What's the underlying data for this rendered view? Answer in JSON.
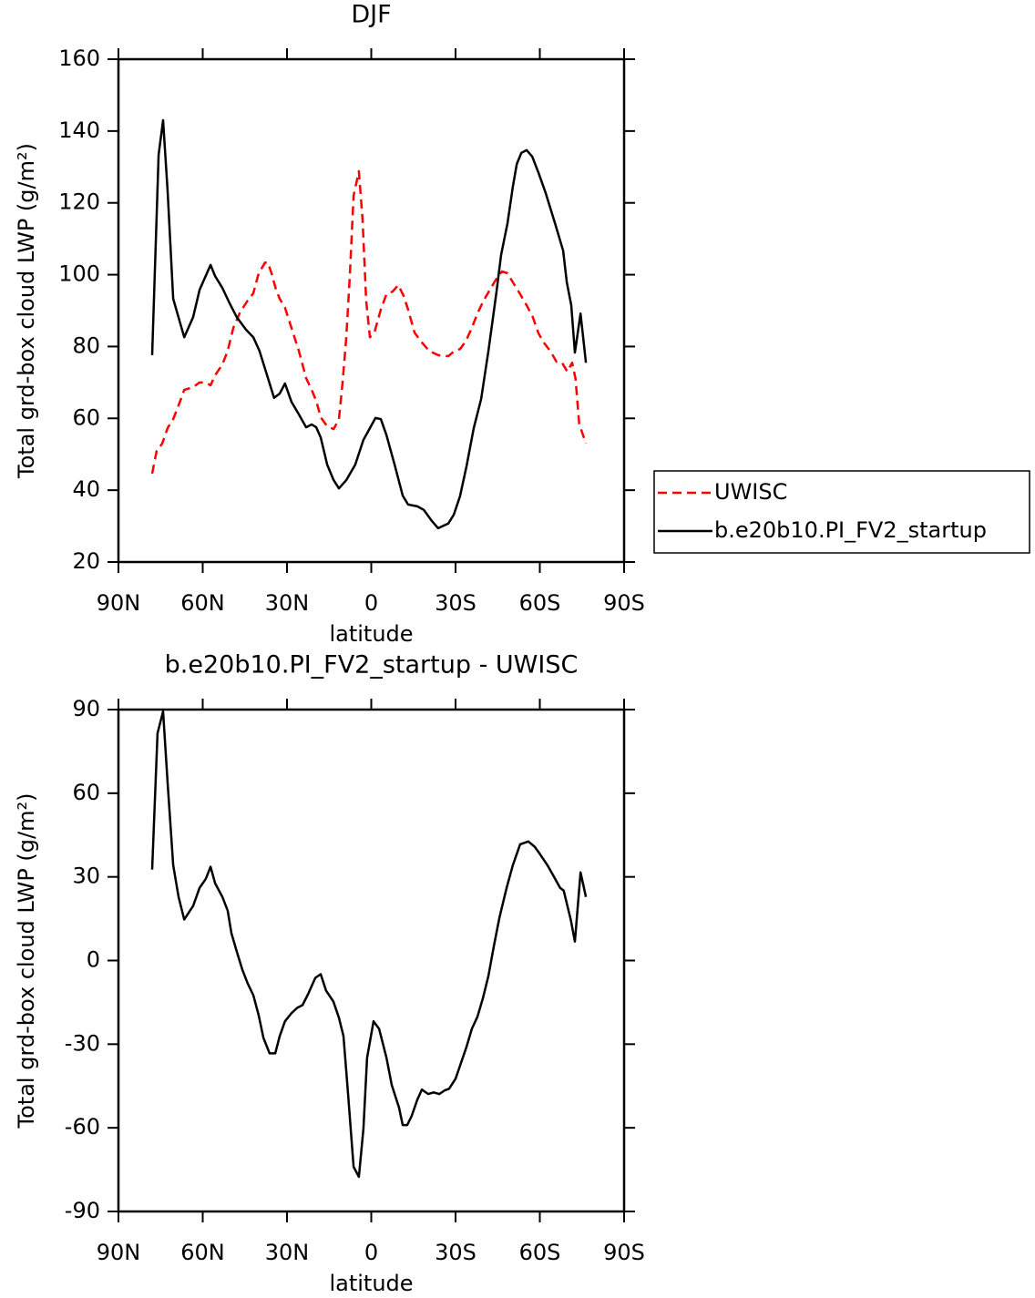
{
  "chart_data": [
    {
      "type": "line",
      "title": "DJF",
      "xlabel": "latitude",
      "ylabel": "Total grd-box cloud LWP (g/m²)",
      "xlim": [
        90,
        -90
      ],
      "xticks": [
        {
          "value": 90,
          "label": "90N"
        },
        {
          "value": 60,
          "label": "60N"
        },
        {
          "value": 30,
          "label": "30N"
        },
        0,
        {
          "value": -30,
          "label": "30S"
        },
        {
          "value": -60,
          "label": "60S"
        },
        {
          "value": -90,
          "label": "90S"
        }
      ],
      "ylim": [
        20,
        160
      ],
      "yticks": [
        20,
        40,
        60,
        80,
        100,
        120,
        140,
        160
      ],
      "grid": false,
      "legend": "right",
      "series": [
        {
          "name": "UWISC",
          "color": "#ff0000",
          "linestyle": "dashed",
          "x": [
            78.0,
            76.4,
            74.4,
            72.5,
            70.5,
            68.6,
            66.6,
            63.4,
            61.1,
            58.9,
            57.2,
            55.6,
            53.0,
            51.1,
            49.1,
            46.6,
            44.0,
            42.0,
            40.1,
            37.8,
            36.8,
            35.5,
            33.9,
            32.6,
            30.7,
            28.4,
            25.8,
            23.2,
            21.2,
            19.6,
            18.0,
            15.7,
            13.4,
            11.5,
            10.2,
            8.9,
            7.6,
            6.3,
            4.4,
            3.1,
            1.8,
            0.5,
            -1.1,
            -3.4,
            -5.4,
            -7.6,
            -9.6,
            -11.5,
            -13.1,
            -15.4,
            -17.7,
            -20.6,
            -23.8,
            -27.4,
            -29.4,
            -31.6,
            -33.6,
            -35.8,
            -37.8,
            -40.0,
            -42.6,
            -44.6,
            -46.5,
            -48.5,
            -50.4,
            -53.0,
            -55.3,
            -57.5,
            -59.5,
            -61.4,
            -63.7,
            -65.9,
            -67.9,
            -69.8,
            -71.5,
            -72.7,
            -74.0,
            -76.4
          ],
          "values": [
            44.6,
            50.9,
            53.0,
            57.3,
            59.8,
            63.6,
            67.9,
            68.7,
            70.0,
            70.0,
            69.2,
            72.0,
            75.0,
            78.8,
            85.2,
            89.7,
            92.8,
            94.8,
            100.4,
            103.4,
            103.4,
            100.4,
            95.8,
            93.3,
            90.8,
            85.2,
            78.8,
            71.2,
            67.9,
            64.9,
            60.3,
            57.8,
            57.0,
            59.8,
            70.0,
            82.6,
            100.4,
            122.0,
            128.8,
            115.6,
            92.8,
            82.6,
            83.9,
            90.3,
            94.6,
            95.3,
            97.1,
            94.1,
            90.3,
            83.9,
            81.4,
            78.8,
            77.6,
            77.3,
            78.6,
            79.3,
            81.4,
            85.2,
            89.2,
            92.8,
            96.3,
            98.9,
            100.9,
            100.4,
            97.9,
            94.6,
            91.5,
            88.2,
            83.7,
            81.1,
            78.8,
            75.8,
            75.5,
            73.0,
            75.5,
            71.0,
            58.5,
            53.0
          ]
        },
        {
          "name": "b.e20b10.PI_FV2_startup",
          "color": "#000000",
          "linestyle": "solid",
          "x": [
            78.0,
            75.7,
            74.1,
            72.5,
            70.5,
            66.6,
            63.4,
            61.1,
            57.2,
            55.6,
            53.0,
            50.4,
            47.9,
            44.6,
            42.0,
            39.8,
            37.5,
            34.6,
            32.6,
            30.7,
            28.4,
            25.8,
            23.2,
            21.2,
            19.6,
            18.0,
            15.7,
            13.4,
            11.5,
            8.9,
            5.7,
            2.8,
            0.8,
            -1.5,
            -3.4,
            -5.4,
            -8.3,
            -11.2,
            -13.1,
            -16.4,
            -18.7,
            -21.6,
            -23.8,
            -27.4,
            -29.4,
            -31.6,
            -33.9,
            -36.5,
            -39.1,
            -41.7,
            -44.6,
            -46.2,
            -48.5,
            -50.4,
            -51.8,
            -53.4,
            -55.3,
            -57.3,
            -59.5,
            -62.1,
            -65.4,
            -68.3,
            -69.6,
            -71.2,
            -72.5,
            -74.5,
            -76.4
          ],
          "values": [
            77.6,
            133.4,
            143.0,
            123.2,
            93.3,
            82.6,
            88.2,
            95.8,
            102.7,
            99.6,
            96.3,
            92.0,
            88.2,
            84.7,
            82.6,
            78.8,
            73.0,
            65.7,
            66.9,
            69.7,
            64.6,
            61.1,
            57.5,
            58.3,
            57.5,
            54.7,
            47.1,
            42.8,
            40.5,
            42.8,
            47.1,
            54.0,
            56.8,
            60.1,
            59.8,
            55.3,
            47.1,
            38.5,
            36.0,
            35.5,
            34.5,
            31.4,
            29.4,
            30.7,
            33.2,
            38.3,
            46.6,
            57.3,
            65.4,
            78.8,
            95.3,
            105.5,
            114.3,
            124.5,
            130.8,
            133.9,
            134.7,
            132.9,
            128.4,
            122.7,
            114.3,
            106.7,
            97.9,
            91.5,
            78.3,
            89.2,
            75.5
          ]
        }
      ]
    },
    {
      "type": "line",
      "title": "b.e20b10.PI_FV2_startup - UWISC",
      "xlabel": "latitude",
      "ylabel": "Total grd-box cloud LWP (g/m²)",
      "xlim": [
        90,
        -90
      ],
      "xticks": [
        {
          "value": 90,
          "label": "90N"
        },
        {
          "value": 60,
          "label": "60N"
        },
        {
          "value": 30,
          "label": "30N"
        },
        0,
        {
          "value": -30,
          "label": "30S"
        },
        {
          "value": -60,
          "label": "60S"
        },
        {
          "value": -90,
          "label": "90S"
        }
      ],
      "ylim": [
        -90,
        90
      ],
      "yticks": [
        -90,
        -60,
        -30,
        0,
        30,
        60,
        90
      ],
      "grid": false,
      "series": [
        {
          "color": "#000000",
          "linestyle": "solid",
          "x": [
            78.0,
            76.1,
            74.1,
            72.5,
            70.5,
            68.6,
            66.6,
            63.4,
            61.1,
            58.9,
            57.2,
            55.6,
            53.0,
            51.1,
            49.8,
            47.9,
            45.9,
            44.0,
            42.0,
            40.1,
            38.4,
            36.2,
            34.2,
            32.6,
            30.7,
            28.4,
            26.4,
            24.5,
            22.5,
            19.9,
            18.0,
            16.1,
            13.5,
            11.5,
            9.9,
            8.3,
            6.3,
            4.4,
            2.8,
            1.5,
            -0.8,
            -2.8,
            -5.4,
            -7.3,
            -9.9,
            -11.2,
            -12.8,
            -14.4,
            -16.4,
            -18.0,
            -20.3,
            -22.2,
            -24.2,
            -26.1,
            -27.7,
            -30.0,
            -31.9,
            -33.9,
            -35.8,
            -37.8,
            -39.7,
            -41.7,
            -43.6,
            -45.6,
            -48.2,
            -50.4,
            -53.0,
            -55.9,
            -58.2,
            -60.1,
            -62.7,
            -64.9,
            -67.2,
            -68.5,
            -71.0,
            -72.5,
            -74.5,
            -76.4
          ],
          "values": [
            32.6,
            81.5,
            89.3,
            63.6,
            34.2,
            22.8,
            14.7,
            19.6,
            26.1,
            29.3,
            33.6,
            27.7,
            22.8,
            17.9,
            9.8,
            3.3,
            -3.3,
            -8.2,
            -12.4,
            -19.6,
            -27.7,
            -33.3,
            -33.3,
            -27.1,
            -21.8,
            -18.9,
            -17.0,
            -16.0,
            -12.1,
            -6.2,
            -4.9,
            -10.8,
            -14.7,
            -20.5,
            -27.1,
            -47.3,
            -74.0,
            -77.6,
            -60.3,
            -34.9,
            -21.8,
            -24.5,
            -34.9,
            -44.7,
            -52.8,
            -59.0,
            -59.0,
            -55.7,
            -49.9,
            -46.3,
            -47.9,
            -47.3,
            -47.9,
            -46.6,
            -46.0,
            -42.4,
            -36.8,
            -31.0,
            -24.5,
            -20.2,
            -13.7,
            -5.5,
            4.9,
            15.3,
            26.1,
            34.2,
            41.7,
            42.7,
            40.8,
            38.1,
            34.2,
            30.3,
            26.1,
            25.1,
            14.7,
            6.8,
            31.6,
            22.8
          ]
        }
      ]
    }
  ]
}
